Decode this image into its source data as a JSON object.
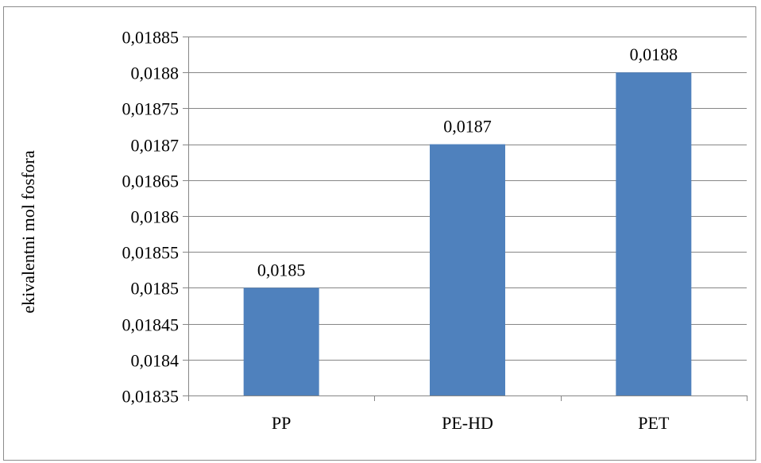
{
  "chart_data": {
    "type": "bar",
    "categories": [
      "PP",
      "PE-HD",
      "PET"
    ],
    "values": [
      0.0185,
      0.0187,
      0.0188
    ],
    "data_labels": [
      "0,0185",
      "0,0187",
      "0,0188"
    ],
    "title": "",
    "xlabel": "",
    "ylabel": "ekivalentni mol fosfora",
    "ylim": [
      0.01835,
      0.01885
    ],
    "yticks": [
      0.01835,
      0.0184,
      0.01845,
      0.0185,
      0.01855,
      0.0186,
      0.01865,
      0.0187,
      0.01875,
      0.0188,
      0.01885
    ],
    "ytick_labels": [
      "0,01835",
      "0,0184",
      "0,01845",
      "0,0185",
      "0,01855",
      "0,0186",
      "0,01865",
      "0,0187",
      "0,01875",
      "0,0188",
      "0,01885"
    ],
    "grid": true,
    "legend": false,
    "bar_color": "#4f81bd",
    "grid_color": "#868686"
  }
}
